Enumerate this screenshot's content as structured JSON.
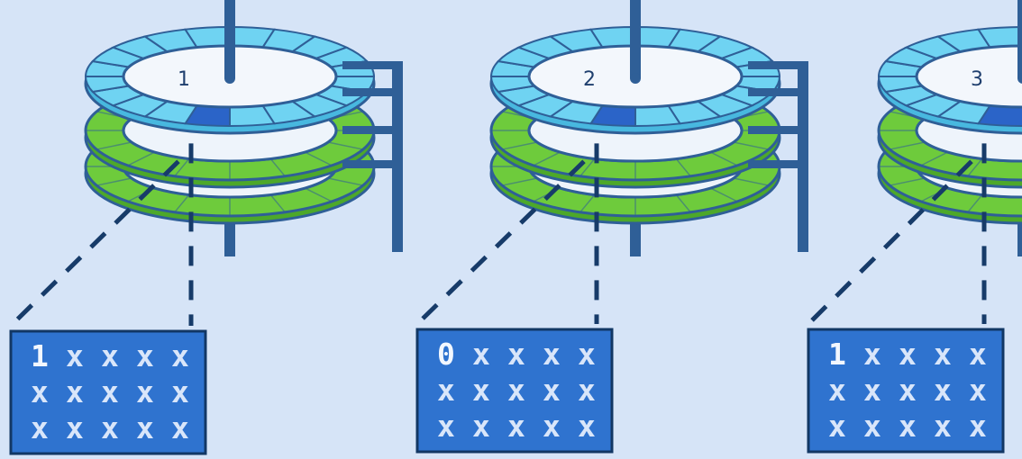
{
  "colors": {
    "background": "#d6e4f7",
    "platter_top": "#6fd3f2",
    "platter_selected_sector": "#2b64c8",
    "platter_lower": "#6ecb3c",
    "spindle": "#2f5f97",
    "block_fill": "#2f73cf",
    "block_text_bright": "#f2f7ff",
    "block_text_dim": "#d9e6fa",
    "leader_line": "#173b69"
  },
  "disks": [
    {
      "label": "1",
      "block_rows": [
        [
          "1",
          "x",
          "x",
          "x",
          "x"
        ],
        [
          "x",
          "x",
          "x",
          "x",
          "x"
        ],
        [
          "x",
          "x",
          "x",
          "x",
          "x"
        ]
      ]
    },
    {
      "label": "2",
      "block_rows": [
        [
          "0",
          "x",
          "x",
          "x",
          "x"
        ],
        [
          "x",
          "x",
          "x",
          "x",
          "x"
        ],
        [
          "x",
          "x",
          "x",
          "x",
          "x"
        ]
      ]
    },
    {
      "label": "3",
      "block_rows": [
        [
          "1",
          "x",
          "x",
          "x",
          "x"
        ],
        [
          "x",
          "x",
          "x",
          "x",
          "x"
        ],
        [
          "x",
          "x",
          "x",
          "x",
          "x"
        ]
      ]
    }
  ]
}
